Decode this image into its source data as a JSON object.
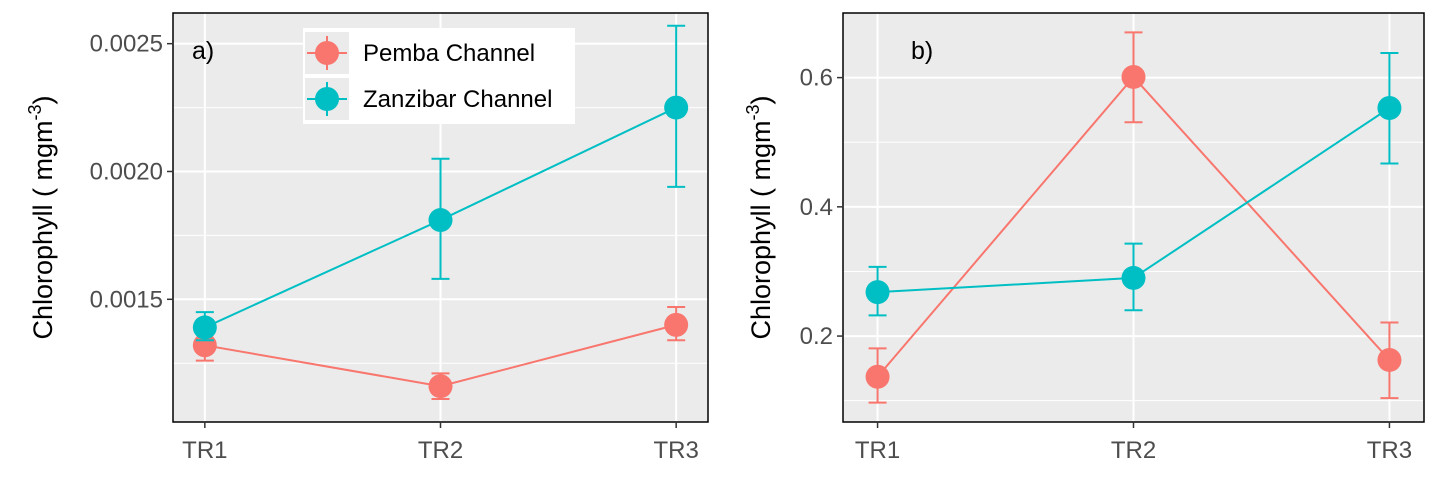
{
  "chart_data": [
    {
      "type": "line",
      "panel_label": "a)",
      "categories": [
        "TR1",
        "TR2",
        "TR3"
      ],
      "ylabel": "Chlorophyll ( mgm",
      "ylabel_sup": "-3",
      "ylabel_close": ")",
      "ylim": [
        0.00102,
        0.00262
      ],
      "yticks": [
        0.0015,
        0.002,
        0.0025
      ],
      "ytick_labels": [
        "0.0015",
        "0.0020",
        "0.0025"
      ],
      "grid": true,
      "legend": "top-center",
      "series": [
        {
          "name": "Pemba Channel",
          "color": "#F8766D",
          "values": [
            0.00132,
            0.00116,
            0.0014
          ],
          "err_low": [
            0.00126,
            0.00111,
            0.00134
          ],
          "err_high": [
            0.00139,
            0.00121,
            0.00147
          ]
        },
        {
          "name": "Zanzibar Channel",
          "color": "#00BFC4",
          "values": [
            0.00139,
            0.00181,
            0.00225
          ],
          "err_low": [
            0.00134,
            0.00158,
            0.00194
          ],
          "err_high": [
            0.00145,
            0.00205,
            0.00257
          ]
        }
      ]
    },
    {
      "type": "line",
      "panel_label": "b)",
      "categories": [
        "TR1",
        "TR2",
        "TR3"
      ],
      "ylabel": "Chlorophyll ( mgm",
      "ylabel_sup": "-3",
      "ylabel_close": ")",
      "ylim": [
        0.067,
        0.7
      ],
      "yticks": [
        0.2,
        0.4,
        0.6
      ],
      "ytick_labels": [
        "0.2",
        "0.4",
        "0.6"
      ],
      "grid": true,
      "legend": "none",
      "series": [
        {
          "name": "Pemba Channel",
          "color": "#F8766D",
          "values": [
            0.137,
            0.601,
            0.163
          ],
          "err_low": [
            0.097,
            0.531,
            0.104
          ],
          "err_high": [
            0.181,
            0.67,
            0.221
          ]
        },
        {
          "name": "Zanzibar Channel",
          "color": "#00BFC4",
          "values": [
            0.268,
            0.29,
            0.553
          ],
          "err_low": [
            0.232,
            0.24,
            0.467
          ],
          "err_high": [
            0.307,
            0.343,
            0.638
          ]
        }
      ]
    }
  ]
}
